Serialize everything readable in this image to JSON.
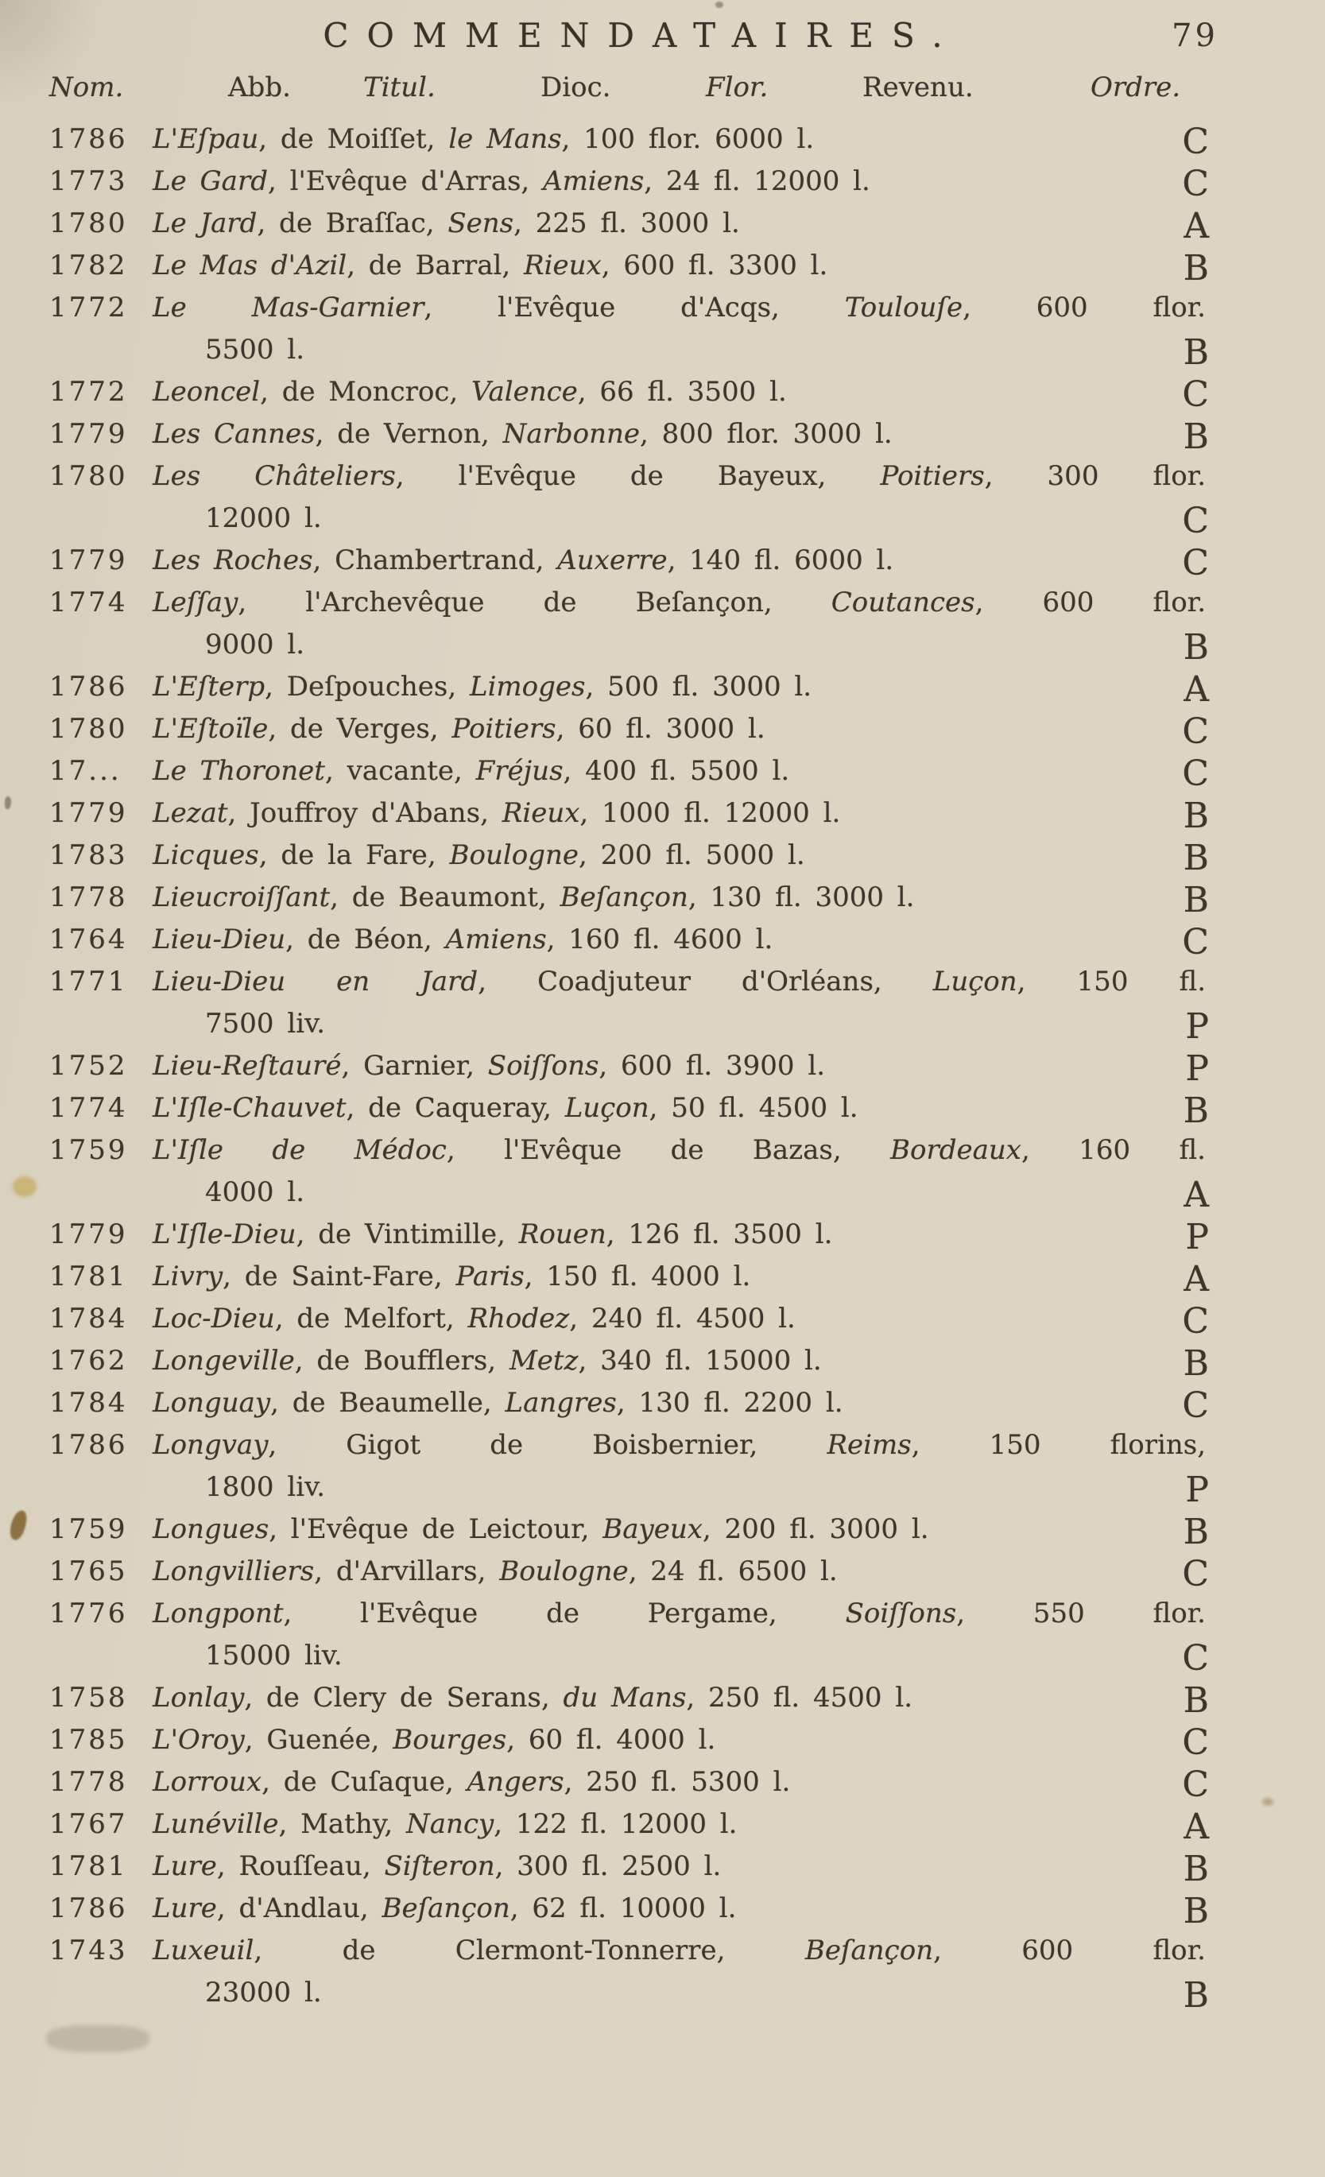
{
  "page": {
    "title": "COMMENDATAIRES.",
    "number": "79"
  },
  "columns": [
    {
      "label": "Nom.",
      "italic": true
    },
    {
      "label": "Abb.",
      "italic": false
    },
    {
      "label": "Titul.",
      "italic": true
    },
    {
      "label": "Dioc.",
      "italic": false
    },
    {
      "label": "Flor.",
      "italic": true
    },
    {
      "label": "Revenu.",
      "italic": false
    },
    {
      "label": "Ordre.",
      "italic": true
    }
  ],
  "entries": [
    {
      "year": "1786",
      "order": "C",
      "segments": [
        {
          "text": "L'Eſpau",
          "italic": true
        },
        {
          "text": ", de Moiſſet, ",
          "italic": false
        },
        {
          "text": "le Mans",
          "italic": true
        },
        {
          "text": ", 100 flor. 6000 l.",
          "italic": false
        }
      ]
    },
    {
      "year": "1773",
      "order": "C",
      "segments": [
        {
          "text": "Le Gard",
          "italic": true
        },
        {
          "text": ", l'Evêque d'Arras, ",
          "italic": false
        },
        {
          "text": "Amiens",
          "italic": true
        },
        {
          "text": ", 24 fl. 12000 l.",
          "italic": false
        }
      ]
    },
    {
      "year": "1780",
      "order": "A",
      "segments": [
        {
          "text": "Le Jard",
          "italic": true
        },
        {
          "text": ", de Braſſac, ",
          "italic": false
        },
        {
          "text": "Sens",
          "italic": true
        },
        {
          "text": ", 225 fl. 3000 l.",
          "italic": false
        }
      ]
    },
    {
      "year": "1782",
      "order": "B",
      "segments": [
        {
          "text": "Le Mas d'Azil",
          "italic": true
        },
        {
          "text": ", de Barral, ",
          "italic": false
        },
        {
          "text": "Rieux",
          "italic": true
        },
        {
          "text": ", 600 fl. 3300 l.",
          "italic": false
        }
      ]
    },
    {
      "year": "1772",
      "order": "B",
      "line2": "5500 l.",
      "segments": [
        {
          "text": "Le Mas-Garnier",
          "italic": true
        },
        {
          "text": ", l'Evêque d'Acqs, ",
          "italic": false
        },
        {
          "text": "Toulouſe",
          "italic": true
        },
        {
          "text": ", 600 flor.",
          "italic": false
        }
      ]
    },
    {
      "year": "1772",
      "order": "C",
      "segments": [
        {
          "text": "Leoncel",
          "italic": true
        },
        {
          "text": ", de Moncroc, ",
          "italic": false
        },
        {
          "text": "Valence",
          "italic": true
        },
        {
          "text": ", 66 fl. 3500 l.",
          "italic": false
        }
      ]
    },
    {
      "year": "1779",
      "order": "B",
      "segments": [
        {
          "text": "Les Cannes",
          "italic": true
        },
        {
          "text": ", de Vernon, ",
          "italic": false
        },
        {
          "text": "Narbonne",
          "italic": true
        },
        {
          "text": ", 800 flor. 3000 l.",
          "italic": false
        }
      ]
    },
    {
      "year": "1780",
      "order": "C",
      "line2": "12000 l.",
      "segments": [
        {
          "text": "Les Châteliers",
          "italic": true
        },
        {
          "text": ", l'Evêque de Bayeux, ",
          "italic": false
        },
        {
          "text": "Poitiers",
          "italic": true
        },
        {
          "text": ", 300 flor.",
          "italic": false
        }
      ]
    },
    {
      "year": "1779",
      "order": "C",
      "segments": [
        {
          "text": "Les Roches",
          "italic": true
        },
        {
          "text": ", Chambertrand, ",
          "italic": false
        },
        {
          "text": "Auxerre",
          "italic": true
        },
        {
          "text": ", 140 fl. 6000 l.",
          "italic": false
        }
      ]
    },
    {
      "year": "1774",
      "order": "B",
      "line2": "9000 l.",
      "segments": [
        {
          "text": "Leſſay",
          "italic": true
        },
        {
          "text": ", l'Archevêque de Beſançon, ",
          "italic": false
        },
        {
          "text": "Coutances",
          "italic": true
        },
        {
          "text": ", 600 flor.",
          "italic": false
        }
      ]
    },
    {
      "year": "1786",
      "order": "A",
      "segments": [
        {
          "text": "L'Eſterp",
          "italic": true
        },
        {
          "text": ", Deſpouches, ",
          "italic": false
        },
        {
          "text": "Limoges",
          "italic": true
        },
        {
          "text": ", 500 fl. 3000 l.",
          "italic": false
        }
      ]
    },
    {
      "year": "1780",
      "order": "C",
      "segments": [
        {
          "text": "L'Eſtoïle",
          "italic": true
        },
        {
          "text": ", de Verges, ",
          "italic": false
        },
        {
          "text": "Poitiers",
          "italic": true
        },
        {
          "text": ", 60 fl. 3000 l.",
          "italic": false
        }
      ]
    },
    {
      "year": "17...",
      "order": "C",
      "segments": [
        {
          "text": "Le Thoronet",
          "italic": true
        },
        {
          "text": ", vacante, ",
          "italic": false
        },
        {
          "text": "Fréjus",
          "italic": true
        },
        {
          "text": ", 400 fl. 5500 l.",
          "italic": false
        }
      ]
    },
    {
      "year": "1779",
      "order": "B",
      "segments": [
        {
          "text": "Lezat",
          "italic": true
        },
        {
          "text": ", Jouffroy d'Abans, ",
          "italic": false
        },
        {
          "text": "Rieux",
          "italic": true
        },
        {
          "text": ", 1000 fl. 12000 l.",
          "italic": false
        }
      ]
    },
    {
      "year": "1783",
      "order": "B",
      "segments": [
        {
          "text": "Licques",
          "italic": true
        },
        {
          "text": ", de la Fare, ",
          "italic": false
        },
        {
          "text": "Boulogne",
          "italic": true
        },
        {
          "text": ", 200 fl. 5000 l.",
          "italic": false
        }
      ]
    },
    {
      "year": "1778",
      "order": "B",
      "segments": [
        {
          "text": "Lieucroiſſant",
          "italic": true
        },
        {
          "text": ", de Beaumont, ",
          "italic": false
        },
        {
          "text": "Beſançon",
          "italic": true
        },
        {
          "text": ", 130 fl. 3000 l.",
          "italic": false
        }
      ]
    },
    {
      "year": "1764",
      "order": "C",
      "segments": [
        {
          "text": "Lieu-Dieu",
          "italic": true
        },
        {
          "text": ", de Béon, ",
          "italic": false
        },
        {
          "text": "Amiens",
          "italic": true
        },
        {
          "text": ", 160 fl. 4600 l.",
          "italic": false
        }
      ]
    },
    {
      "year": "1771",
      "order": "P",
      "line2": "7500 liv.",
      "segments": [
        {
          "text": "Lieu-Dieu en Jard",
          "italic": true
        },
        {
          "text": ", Coadjuteur d'Orléans, ",
          "italic": false
        },
        {
          "text": "Luçon",
          "italic": true
        },
        {
          "text": ", 150 fl.",
          "italic": false
        }
      ]
    },
    {
      "year": "1752",
      "order": "P",
      "segments": [
        {
          "text": "Lieu-Reſtauré",
          "italic": true
        },
        {
          "text": ", Garnier, ",
          "italic": false
        },
        {
          "text": "Soiſſons",
          "italic": true
        },
        {
          "text": ", 600 fl. 3900 l.",
          "italic": false
        }
      ]
    },
    {
      "year": "1774",
      "order": "B",
      "segments": [
        {
          "text": "L'Iſle-Chauvet",
          "italic": true
        },
        {
          "text": ", de Caqueray, ",
          "italic": false
        },
        {
          "text": "Luçon",
          "italic": true
        },
        {
          "text": ", 50 fl. 4500 l.",
          "italic": false
        }
      ]
    },
    {
      "year": "1759",
      "order": "A",
      "line2": "4000 l.",
      "segments": [
        {
          "text": "L'Iſle de Médoc",
          "italic": true
        },
        {
          "text": ", l'Evêque de Bazas, ",
          "italic": false
        },
        {
          "text": "Bordeaux",
          "italic": true
        },
        {
          "text": ", 160 fl.",
          "italic": false
        }
      ]
    },
    {
      "year": "1779",
      "order": "P",
      "segments": [
        {
          "text": "L'Iſle-Dieu",
          "italic": true
        },
        {
          "text": ", de Vintimille, ",
          "italic": false
        },
        {
          "text": "Rouen",
          "italic": true
        },
        {
          "text": ", 126 fl. 3500 l.",
          "italic": false
        }
      ]
    },
    {
      "year": "1781",
      "order": "A",
      "segments": [
        {
          "text": "Livry",
          "italic": true
        },
        {
          "text": ", de Saint-Fare, ",
          "italic": false
        },
        {
          "text": "Paris",
          "italic": true
        },
        {
          "text": ", 150 fl. 4000 l.",
          "italic": false
        }
      ]
    },
    {
      "year": "1784",
      "order": "C",
      "segments": [
        {
          "text": "Loc-Dieu",
          "italic": true
        },
        {
          "text": ", de Melfort, ",
          "italic": false
        },
        {
          "text": "Rhodez",
          "italic": true
        },
        {
          "text": ", 240 fl. 4500 l.",
          "italic": false
        }
      ]
    },
    {
      "year": "1762",
      "order": "B",
      "segments": [
        {
          "text": "Longeville",
          "italic": true
        },
        {
          "text": ", de Boufflers, ",
          "italic": false
        },
        {
          "text": "Metz",
          "italic": true
        },
        {
          "text": ", 340 fl. 15000 l.",
          "italic": false
        }
      ]
    },
    {
      "year": "1784",
      "order": "C",
      "segments": [
        {
          "text": "Longuay",
          "italic": true
        },
        {
          "text": ", de Beaumelle, ",
          "italic": false
        },
        {
          "text": "Langres",
          "italic": true
        },
        {
          "text": ", 130 fl. 2200 l.",
          "italic": false
        }
      ]
    },
    {
      "year": "1786",
      "order": "P",
      "line2": "1800 liv.",
      "segments": [
        {
          "text": "Longvay",
          "italic": true
        },
        {
          "text": ", Gigot de Boisbernier, ",
          "italic": false
        },
        {
          "text": "Reims",
          "italic": true
        },
        {
          "text": ", 150 florins,",
          "italic": false
        }
      ]
    },
    {
      "year": "1759",
      "order": "B",
      "segments": [
        {
          "text": "Longues",
          "italic": true
        },
        {
          "text": ", l'Evêque de Leictour, ",
          "italic": false
        },
        {
          "text": "Bayeux",
          "italic": true
        },
        {
          "text": ", 200 fl. 3000 l.",
          "italic": false
        }
      ]
    },
    {
      "year": "1765",
      "order": "C",
      "segments": [
        {
          "text": "Longvilliers",
          "italic": true
        },
        {
          "text": ", d'Arvillars, ",
          "italic": false
        },
        {
          "text": "Boulogne",
          "italic": true
        },
        {
          "text": ", 24 fl. 6500 l.",
          "italic": false
        }
      ]
    },
    {
      "year": "1776",
      "order": "C",
      "line2": "15000 liv.",
      "segments": [
        {
          "text": "Longpont",
          "italic": true
        },
        {
          "text": ", l'Evêque de Pergame, ",
          "italic": false
        },
        {
          "text": "Soiſſons",
          "italic": true
        },
        {
          "text": ", 550 flor.",
          "italic": false
        }
      ]
    },
    {
      "year": "1758",
      "order": "B",
      "segments": [
        {
          "text": "Lonlay",
          "italic": true
        },
        {
          "text": ", de Clery de Serans, ",
          "italic": false
        },
        {
          "text": "du Mans",
          "italic": true
        },
        {
          "text": ", 250 fl. 4500 l.",
          "italic": false
        }
      ]
    },
    {
      "year": "1785",
      "order": "C",
      "segments": [
        {
          "text": "L'Oroy",
          "italic": true
        },
        {
          "text": ", Guenée, ",
          "italic": false
        },
        {
          "text": "Bourges",
          "italic": true
        },
        {
          "text": ", 60 fl. 4000 l.",
          "italic": false
        }
      ]
    },
    {
      "year": "1778",
      "order": "C",
      "segments": [
        {
          "text": "Lorroux",
          "italic": true
        },
        {
          "text": ", de Cuſaque, ",
          "italic": false
        },
        {
          "text": "Angers",
          "italic": true
        },
        {
          "text": ", 250 fl. 5300 l.",
          "italic": false
        }
      ]
    },
    {
      "year": "1767",
      "order": "A",
      "segments": [
        {
          "text": "Lunéville",
          "italic": true
        },
        {
          "text": ", Mathy, ",
          "italic": false
        },
        {
          "text": "Nancy",
          "italic": true
        },
        {
          "text": ", 122 fl. 12000 l.",
          "italic": false
        }
      ]
    },
    {
      "year": "1781",
      "order": "B",
      "segments": [
        {
          "text": "Lure",
          "italic": true
        },
        {
          "text": ", Rouſſeau, ",
          "italic": false
        },
        {
          "text": "Siſteron",
          "italic": true
        },
        {
          "text": ", 300 fl. 2500 l.",
          "italic": false
        }
      ]
    },
    {
      "year": "1786",
      "order": "B",
      "segments": [
        {
          "text": "Lure",
          "italic": true
        },
        {
          "text": ", d'Andlau, ",
          "italic": false
        },
        {
          "text": "Beſançon",
          "italic": true
        },
        {
          "text": ", 62 fl. 10000 l.",
          "italic": false
        }
      ]
    },
    {
      "year": "1743",
      "order": "B",
      "line2": "23000 l.",
      "segments": [
        {
          "text": "Luxeuil",
          "italic": true
        },
        {
          "text": ", de Clermont-Tonnerre, ",
          "italic": false
        },
        {
          "text": "Beſançon",
          "italic": true
        },
        {
          "text": ", 600 flor.",
          "italic": false
        }
      ]
    }
  ]
}
